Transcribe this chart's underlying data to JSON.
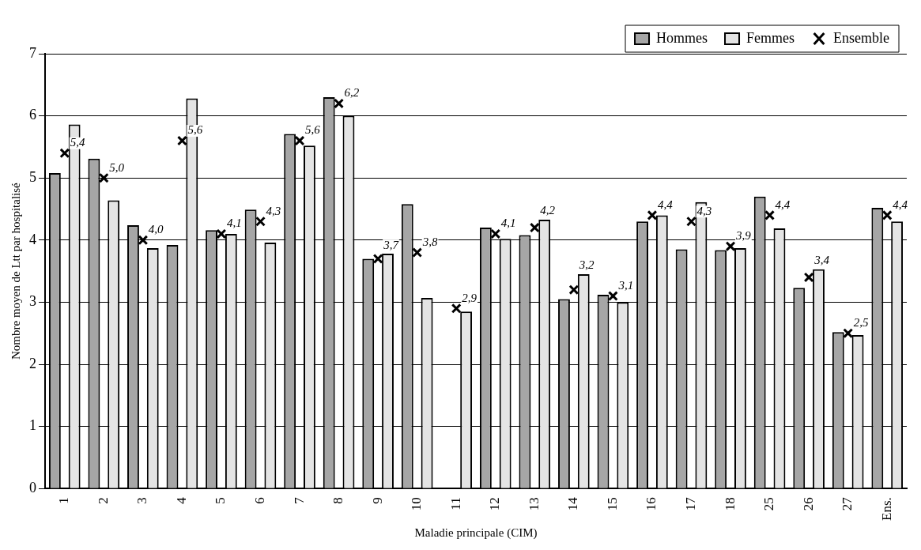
{
  "chart_data": {
    "type": "bar",
    "xlabel": "Maladie principale (CIM)",
    "ylabel": "Nombre moyen de Ltt par hospitalisé",
    "categories": [
      "1",
      "2",
      "3",
      "4",
      "5",
      "6",
      "7",
      "8",
      "9",
      "10",
      "11",
      "12",
      "13",
      "14",
      "15",
      "16",
      "17",
      "18",
      "25",
      "26",
      "27",
      "Ens."
    ],
    "series": [
      {
        "name": "Hommes",
        "color": "#a6a6a6",
        "values": [
          5.08,
          5.31,
          4.24,
          3.92,
          4.16,
          4.49,
          5.71,
          6.3,
          3.7,
          4.58,
          null,
          4.2,
          4.08,
          3.05,
          3.12,
          4.3,
          3.85,
          3.84,
          4.7,
          3.23,
          2.52,
          4.52
        ]
      },
      {
        "name": "Femmes",
        "color": "#e4e4e4",
        "values": [
          5.86,
          4.64,
          3.87,
          6.28,
          4.1,
          3.96,
          5.52,
          6.0,
          3.78,
          3.07,
          2.85,
          4.02,
          4.33,
          3.45,
          3.0,
          4.4,
          4.61,
          3.87,
          4.19,
          3.53,
          2.47,
          4.3
        ]
      },
      {
        "name": "Ensemble",
        "type": "scatter",
        "color": "#000000",
        "marker": "cross",
        "x": [
          "1",
          "2",
          "3",
          "4",
          "5",
          "6",
          "7",
          "8",
          "9",
          "10",
          "11",
          "12",
          "13",
          "14",
          "15",
          "16",
          "17",
          "18",
          "25",
          "26",
          "27",
          "Ens."
        ],
        "values": [
          5.4,
          5.0,
          4.0,
          5.6,
          4.1,
          4.3,
          5.6,
          6.2,
          3.7,
          3.8,
          2.9,
          4.1,
          4.2,
          3.2,
          3.1,
          4.4,
          4.3,
          3.9,
          4.4,
          3.4,
          2.5,
          4.4
        ],
        "value_labels": [
          "5,4",
          "5,0",
          "4,0",
          "5,6",
          "4,1",
          "4,3",
          "5,6",
          "6,2",
          "3,7",
          "3,8",
          "2,9",
          "4,1",
          "4,2",
          "3,2",
          "3,1",
          "4,4",
          "4,3",
          "3,9",
          "4,4",
          "3,4",
          "2,5",
          "4,4"
        ]
      }
    ],
    "ylim": [
      0,
      7
    ],
    "yticks": [
      0,
      1,
      2,
      3,
      4,
      5,
      6,
      7
    ],
    "grid": "y",
    "legend": "top right"
  }
}
